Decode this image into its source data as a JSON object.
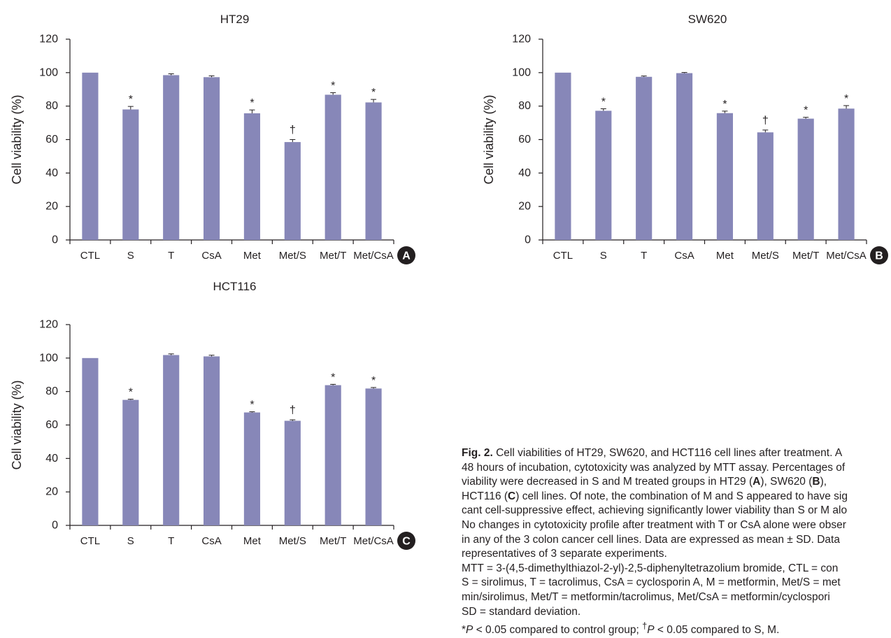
{
  "chart_data": [
    {
      "type": "bar",
      "title": "HT29",
      "ylabel": "Cell viability (%)",
      "ylim": [
        0,
        120
      ],
      "yticks": [
        "0",
        "20",
        "40",
        "60",
        "80",
        "100",
        "120"
      ],
      "categories": [
        "CTL",
        "S",
        "T",
        "CsA",
        "Met",
        "Met/S",
        "Met/T",
        "Met/CsA"
      ],
      "values": [
        100,
        78,
        98.5,
        97.3,
        75.7,
        58.5,
        86.8,
        82.2
      ],
      "errors": [
        0,
        1.8,
        0.8,
        0.8,
        2.0,
        1.5,
        1.2,
        1.8
      ],
      "marks": [
        "",
        "*",
        "",
        "",
        "*",
        "†",
        "*",
        "*"
      ],
      "panel_label": "A",
      "bar_color": "#8787b8"
    },
    {
      "type": "bar",
      "title": "SW620",
      "ylabel": "Cell viability (%)",
      "ylim": [
        0,
        120
      ],
      "yticks": [
        "0",
        "20",
        "40",
        "60",
        "80",
        "100",
        "120"
      ],
      "categories": [
        "CTL",
        "S",
        "T",
        "CsA",
        "Met",
        "Met/S",
        "Met/T",
        "Met/CsA"
      ],
      "values": [
        100,
        77.2,
        97.5,
        99.7,
        75.8,
        64.3,
        72.5,
        78.5
      ],
      "errors": [
        0,
        1.2,
        0.5,
        0.4,
        1.2,
        1.4,
        0.8,
        1.8
      ],
      "marks": [
        "",
        "*",
        "",
        "",
        "*",
        "†",
        "*",
        "*"
      ],
      "panel_label": "B",
      "bar_color": "#8787b8"
    },
    {
      "type": "bar",
      "title": "HCT116",
      "ylabel": "Cell viability (%)",
      "ylim": [
        0,
        120
      ],
      "yticks": [
        "0",
        "20",
        "40",
        "60",
        "80",
        "100",
        "120"
      ],
      "categories": [
        "CTL",
        "S",
        "T",
        "CsA",
        "Met",
        "Met/S",
        "Met/T",
        "Met/CsA"
      ],
      "values": [
        100,
        75,
        101.8,
        101.0,
        67.5,
        62.5,
        83.8,
        81.8
      ],
      "errors": [
        0,
        0.4,
        0.7,
        0.7,
        0.4,
        0.6,
        0.5,
        0.6
      ],
      "marks": [
        "",
        "*",
        "",
        "",
        "*",
        "†",
        "*",
        "*"
      ],
      "panel_label": "C",
      "bar_color": "#8787b8"
    }
  ],
  "caption": {
    "fig_label": "Fig. 2.",
    "line1": " Cell viabilities of HT29, SW620, and HCT116 cell lines after treatment. A",
    "line2": "48 hours of incubation, cytotoxicity was analyzed by MTT assay. Percentages of",
    "line3_a": "viability were decreased in S and M treated groups in HT29 (",
    "line3_b": "A",
    "line3_c": "), SW620 (",
    "line3_d": "B",
    "line3_e": "),",
    "line4_a": "HCT116 (",
    "line4_b": "C",
    "line4_c": ") cell lines. Of note, the combination of M and S appeared to have sig",
    "line5": "cant cell-suppressive effect, achieving significantly lower viability than S or M alo",
    "line6": "No changes in cytotoxicity profile after treatment with T or CsA alone were obser",
    "line7": "in any of the 3 colon cancer cell lines. Data are expressed as mean ± SD. Data",
    "line8": "representatives of 3 separate experiments.",
    "line9": "MTT = 3-(4,5-dimethylthiazol-2-yl)-2,5-diphenyltetrazolium bromide, CTL = con",
    "line10": "S = sirolimus, T = tacrolimus, CsA = cyclosporin A, M = metformin, Met/S = met",
    "line11": "min/sirolimus, Met/T = metformin/tacrolimus, Met/CsA = metformin/cyclospori",
    "line12": "SD = standard deviation.",
    "line13_a": "*",
    "line13_b": "P",
    "line13_c": " < 0.05 compared to control group; ",
    "line13_d": "†",
    "line13_e": "P",
    "line13_f": " < 0.05 compared to S, M."
  }
}
